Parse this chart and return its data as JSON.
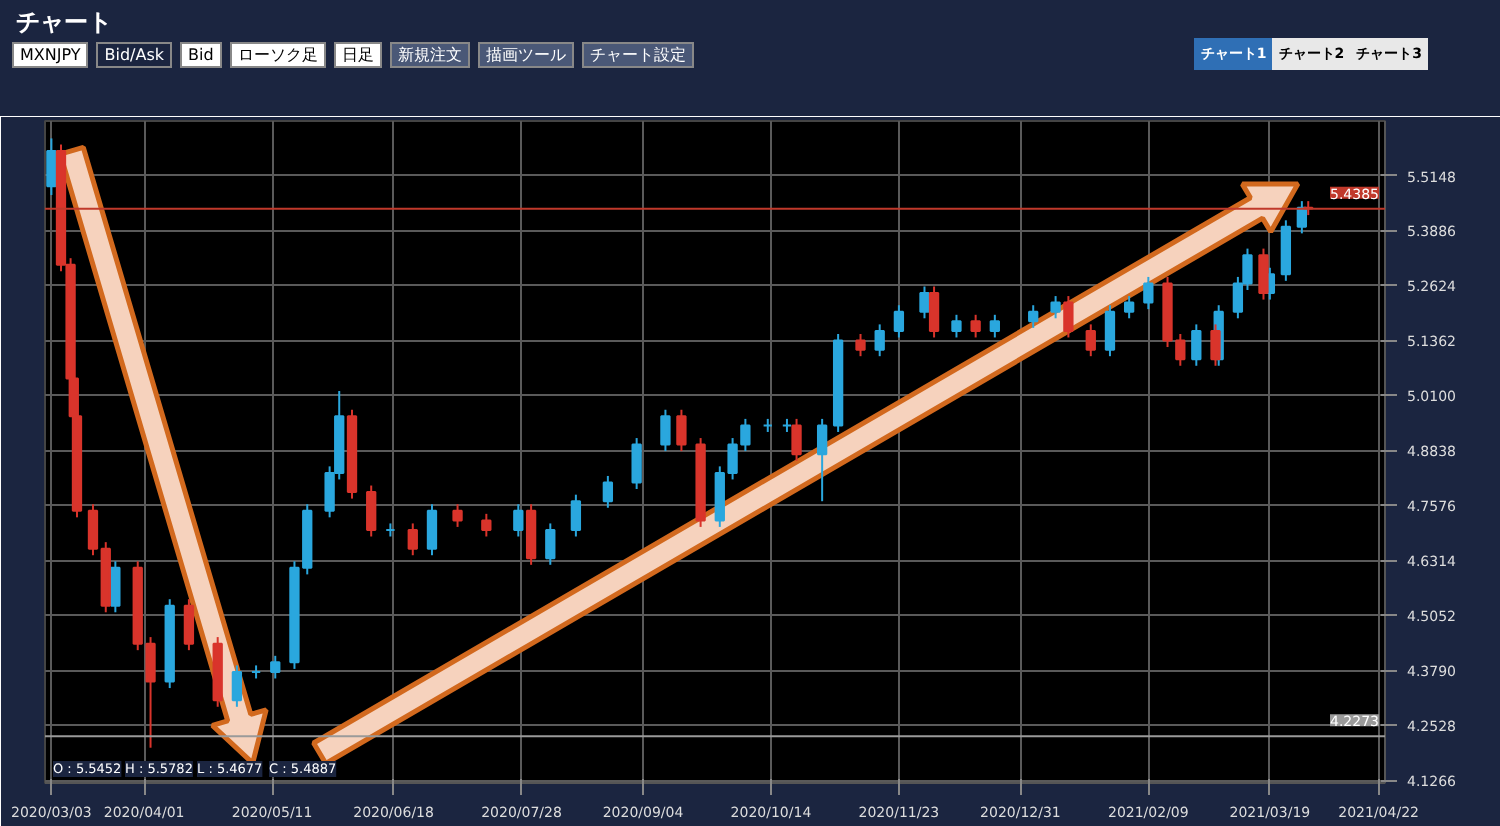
{
  "chart_data": {
    "type": "candlestick",
    "title": "チャート",
    "annotations": [
      "MXNJPY",
      "Bid/Ask",
      "Bid",
      "ローソク足",
      "日足",
      "新規注文",
      "描画ツール",
      "チャート設定",
      "チャート1",
      "チャート2",
      "チャート3",
      "O : 5.5452",
      "H : 5.5782",
      "L : 5.4677",
      "C : 5.4887"
    ],
    "x": [
      "2020-03-03",
      "2020-03-06",
      "2020-03-09",
      "2020-03-10",
      "2020-03-11",
      "2020-03-16",
      "2020-03-20",
      "2020-03-23",
      "2020-03-30",
      "2020-04-03",
      "2020-04-09",
      "2020-04-15",
      "2020-04-24",
      "2020-04-30",
      "2020-05-06",
      "2020-05-12",
      "2020-05-18",
      "2020-05-22",
      "2020-05-29",
      "2020-06-01",
      "2020-06-05",
      "2020-06-11",
      "2020-06-17",
      "2020-06-24",
      "2020-06-30",
      "2020-07-08",
      "2020-07-17",
      "2020-07-27",
      "2020-07-31",
      "2020-08-06",
      "2020-08-14",
      "2020-08-24",
      "2020-09-02",
      "2020-09-11",
      "2020-09-16",
      "2020-09-22",
      "2020-09-28",
      "2020-10-02",
      "2020-10-06",
      "2020-10-13",
      "2020-10-19",
      "2020-10-22",
      "2020-10-30",
      "2020-11-04",
      "2020-11-11",
      "2020-11-17",
      "2020-11-23",
      "2020-12-01",
      "2020-12-04",
      "2020-12-11",
      "2020-12-17",
      "2020-12-23",
      "2021-01-04",
      "2021-01-11",
      "2021-01-15",
      "2021-01-22",
      "2021-01-28",
      "2021-02-03",
      "2021-02-09",
      "2021-02-15",
      "2021-02-19",
      "2021-02-24",
      "2021-03-02",
      "2021-03-03",
      "2021-03-09",
      "2021-03-12",
      "2021-03-17",
      "2021-03-19",
      "2021-03-24",
      "2021-03-29",
      "2021-03-31"
    ],
    "ohlc": [
      [
        5.49,
        5.6,
        5.47,
        5.571
      ],
      [
        5.571,
        5.586,
        5.295,
        5.31
      ],
      [
        5.31,
        5.325,
        5.034,
        5.049
      ],
      [
        5.049,
        5.064,
        4.947,
        4.962
      ],
      [
        4.962,
        4.977,
        4.73,
        4.745
      ],
      [
        4.745,
        4.76,
        4.643,
        4.658
      ],
      [
        4.658,
        4.673,
        4.512,
        4.527
      ],
      [
        4.527,
        4.629,
        4.512,
        4.614
      ],
      [
        4.614,
        4.629,
        4.425,
        4.44
      ],
      [
        4.44,
        4.455,
        4.201,
        4.353
      ],
      [
        4.353,
        4.542,
        4.338,
        4.527
      ],
      [
        4.527,
        4.542,
        4.425,
        4.44
      ],
      [
        4.44,
        4.455,
        4.295,
        4.31
      ],
      [
        4.31,
        4.39,
        4.295,
        4.375
      ],
      [
        4.375,
        4.39,
        4.36,
        4.375
      ],
      [
        4.375,
        4.412,
        4.36,
        4.397
      ],
      [
        4.397,
        4.629,
        4.382,
        4.614
      ],
      [
        4.614,
        4.76,
        4.599,
        4.745
      ],
      [
        4.745,
        4.847,
        4.73,
        4.832
      ],
      [
        4.832,
        5.02,
        4.817,
        4.962
      ],
      [
        4.962,
        4.977,
        4.773,
        4.788
      ],
      [
        4.788,
        4.803,
        4.686,
        4.701
      ],
      [
        4.701,
        4.716,
        4.686,
        4.701
      ],
      [
        4.701,
        4.716,
        4.643,
        4.658
      ],
      [
        4.658,
        4.76,
        4.643,
        4.745
      ],
      [
        4.745,
        4.76,
        4.708,
        4.723
      ],
      [
        4.723,
        4.738,
        4.686,
        4.701
      ],
      [
        4.701,
        4.76,
        4.686,
        4.745
      ],
      [
        4.745,
        4.76,
        4.621,
        4.636
      ],
      [
        4.636,
        4.716,
        4.621,
        4.701
      ],
      [
        4.701,
        4.782,
        4.686,
        4.767
      ],
      [
        4.767,
        4.825,
        4.752,
        4.81
      ],
      [
        4.81,
        4.912,
        4.795,
        4.897
      ],
      [
        4.897,
        4.977,
        4.882,
        4.962
      ],
      [
        4.962,
        4.977,
        4.882,
        4.897
      ],
      [
        4.897,
        4.912,
        4.708,
        4.723
      ],
      [
        4.723,
        4.847,
        4.708,
        4.832
      ],
      [
        4.832,
        4.912,
        4.817,
        4.897
      ],
      [
        4.897,
        4.956,
        4.882,
        4.941
      ],
      [
        4.941,
        4.956,
        4.926,
        4.941
      ],
      [
        4.941,
        4.956,
        4.926,
        4.941
      ],
      [
        4.941,
        4.956,
        4.86,
        4.875
      ],
      [
        4.875,
        4.956,
        4.767,
        4.941
      ],
      [
        4.941,
        5.151,
        4.926,
        5.136
      ],
      [
        5.136,
        5.151,
        5.1,
        5.115
      ],
      [
        5.115,
        5.173,
        5.1,
        5.158
      ],
      [
        5.158,
        5.217,
        5.143,
        5.202
      ],
      [
        5.202,
        5.26,
        5.187,
        5.245
      ],
      [
        5.245,
        5.26,
        5.143,
        5.158
      ],
      [
        5.158,
        5.195,
        5.143,
        5.18
      ],
      [
        5.18,
        5.195,
        5.143,
        5.158
      ],
      [
        5.158,
        5.195,
        5.143,
        5.18
      ],
      [
        5.18,
        5.217,
        5.165,
        5.202
      ],
      [
        5.202,
        5.238,
        5.187,
        5.223
      ],
      [
        5.223,
        5.238,
        5.143,
        5.158
      ],
      [
        5.158,
        5.173,
        5.1,
        5.115
      ],
      [
        5.115,
        5.217,
        5.1,
        5.202
      ],
      [
        5.202,
        5.238,
        5.187,
        5.223
      ],
      [
        5.223,
        5.282,
        5.208,
        5.267
      ],
      [
        5.267,
        5.282,
        5.121,
        5.136
      ],
      [
        5.136,
        5.151,
        5.078,
        5.093
      ],
      [
        5.093,
        5.173,
        5.078,
        5.158
      ],
      [
        5.158,
        5.173,
        5.078,
        5.093
      ],
      [
        5.093,
        5.217,
        5.078,
        5.202
      ],
      [
        5.202,
        5.282,
        5.187,
        5.267
      ],
      [
        5.267,
        5.347,
        5.252,
        5.332
      ],
      [
        5.332,
        5.347,
        5.23,
        5.245
      ],
      [
        5.245,
        5.303,
        5.23,
        5.288
      ],
      [
        5.288,
        5.412,
        5.273,
        5.397
      ],
      [
        5.397,
        5.456,
        5.382,
        5.441
      ],
      [
        5.441,
        5.456,
        5.424,
        5.439
      ]
    ],
    "colors": [
      "#2aa7de",
      "#d9342b",
      "#d9342b",
      "#d9342b",
      "#d9342b",
      "#d9342b",
      "#d9342b",
      "#2aa7de",
      "#d9342b",
      "#d9342b",
      "#2aa7de",
      "#d9342b",
      "#d9342b",
      "#2aa7de",
      "#2aa7de",
      "#2aa7de",
      "#2aa7de",
      "#2aa7de",
      "#2aa7de",
      "#2aa7de",
      "#d9342b",
      "#d9342b",
      "#2aa7de",
      "#d9342b",
      "#2aa7de",
      "#d9342b",
      "#d9342b",
      "#2aa7de",
      "#d9342b",
      "#2aa7de",
      "#2aa7de",
      "#2aa7de",
      "#2aa7de",
      "#2aa7de",
      "#d9342b",
      "#d9342b",
      "#2aa7de",
      "#2aa7de",
      "#2aa7de",
      "#2aa7de",
      "#2aa7de",
      "#d9342b",
      "#2aa7de",
      "#2aa7de",
      "#d9342b",
      "#2aa7de",
      "#2aa7de",
      "#2aa7de",
      "#d9342b",
      "#2aa7de",
      "#d9342b",
      "#2aa7de",
      "#2aa7de",
      "#2aa7de",
      "#d9342b",
      "#d9342b",
      "#2aa7de",
      "#2aa7de",
      "#2aa7de",
      "#d9342b",
      "#d9342b",
      "#2aa7de",
      "#d9342b",
      "#2aa7de",
      "#2aa7de",
      "#2aa7de",
      "#d9342b",
      "#2aa7de",
      "#2aa7de",
      "#2aa7de",
      "#d9342b"
    ],
    "xlim": [
      "2020-03-01",
      "2021-04-24"
    ],
    "xticks": [
      {
        "value": "2020-03-03",
        "label": "2020/03/03"
      },
      {
        "value": "2020-04-01",
        "label": "2020/04/01"
      },
      {
        "value": "2020-05-11",
        "label": "2020/05/11"
      },
      {
        "value": "2020-06-18",
        "label": "2020/06/18"
      },
      {
        "value": "2020-07-28",
        "label": "2020/07/28"
      },
      {
        "value": "2020-09-04",
        "label": "2020/09/04"
      },
      {
        "value": "2020-10-14",
        "label": "2020/10/14"
      },
      {
        "value": "2020-11-23",
        "label": "2020/11/23"
      },
      {
        "value": "2020-12-31",
        "label": "2020/12/31"
      },
      {
        "value": "2021-02-09",
        "label": "2021/02/09"
      },
      {
        "value": "2021-03-19",
        "label": "2021/03/19"
      },
      {
        "value": "2021-04-22",
        "label": "2021/04/22"
      }
    ],
    "ylim": [
      4.12,
      5.64
    ],
    "yticks": [
      {
        "value": 4.1266,
        "label": "4.1266"
      },
      {
        "value": 4.2528,
        "label": "4.2528"
      },
      {
        "value": 4.379,
        "label": "4.3790"
      },
      {
        "value": 4.5052,
        "label": "4.5052"
      },
      {
        "value": 4.6314,
        "label": "4.6314"
      },
      {
        "value": 4.7576,
        "label": "4.7576"
      },
      {
        "value": 4.8838,
        "label": "4.8838"
      },
      {
        "value": 5.01,
        "label": "5.0100"
      },
      {
        "value": 5.1362,
        "label": "5.1362"
      },
      {
        "value": 5.2624,
        "label": "5.2624"
      },
      {
        "value": 5.3886,
        "label": "5.3886"
      },
      {
        "value": 5.5148,
        "label": "5.5148"
      }
    ],
    "ref_lines": [
      {
        "axis": "y",
        "value": 5.4385,
        "label": "5.4385",
        "color": "#c0392b"
      },
      {
        "axis": "y",
        "value": 4.2273,
        "label": "4.2273",
        "color": "#9a9a9a"
      }
    ],
    "grid": true
  }
}
